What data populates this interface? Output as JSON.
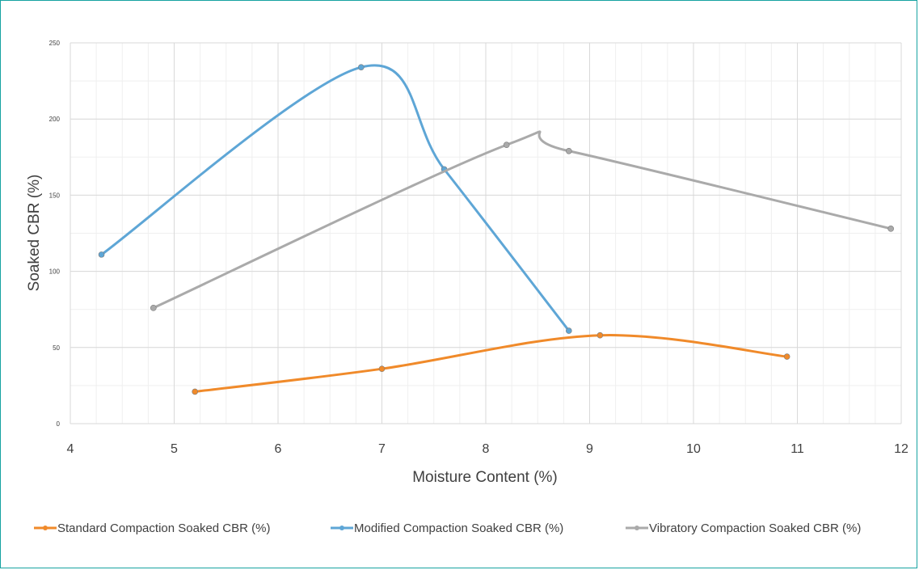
{
  "chart_data": {
    "type": "line",
    "title": "",
    "xlabel": "Moisture Content (%)",
    "ylabel": "Soaked CBR (%)",
    "xlim": [
      4,
      12
    ],
    "ylim": [
      0,
      250
    ],
    "x_ticks": [
      4,
      5,
      6,
      7,
      8,
      9,
      10,
      11,
      12
    ],
    "y_ticks": [
      0,
      50,
      100,
      150,
      200,
      250
    ],
    "grid": {
      "major": true,
      "minor": true
    },
    "smooth": true,
    "legend_position": "bottom",
    "series": [
      {
        "name": "Standard Compaction Soaked CBR (%)",
        "color": "#f08a2a",
        "points": [
          [
            5.2,
            21
          ],
          [
            7.0,
            36
          ],
          [
            9.1,
            58
          ],
          [
            10.9,
            44
          ]
        ]
      },
      {
        "name": "Modified Compaction Soaked CBR (%)",
        "color": "#5ea6d6",
        "points": [
          [
            4.3,
            111
          ],
          [
            6.8,
            234
          ],
          [
            7.6,
            167
          ],
          [
            8.8,
            61
          ]
        ]
      },
      {
        "name": "Vibratory Compaction Soaked CBR (%)",
        "color": "#aaaaaa",
        "points": [
          [
            4.8,
            76
          ],
          [
            8.2,
            183
          ],
          [
            8.8,
            179
          ],
          [
            11.9,
            128
          ]
        ]
      }
    ]
  }
}
